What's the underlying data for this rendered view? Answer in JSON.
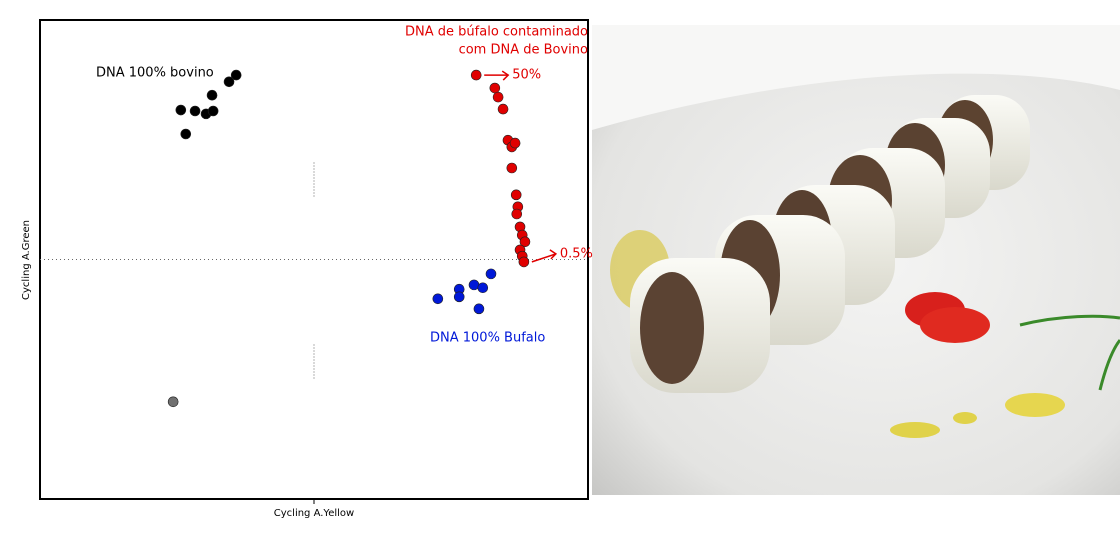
{
  "chart_data": {
    "type": "scatter",
    "x_label": "Cycling A.Yellow",
    "y_label": "Cycling A.Green",
    "xlim": [
      0,
      100
    ],
    "ylim": [
      0,
      100
    ],
    "series": [
      {
        "name": "DNA 100% bovino",
        "color": "#000000",
        "x": [
          35.8,
          34.5,
          31.4,
          25.7,
          28.3,
          30.3,
          31.6,
          26.6
        ],
        "y": [
          88.5,
          87.1,
          84.3,
          81.2,
          81.0,
          80.4,
          81.0,
          76.2
        ]
      },
      {
        "name": [
          "DNA de búfalo contaminado",
          "com DNA de Bovino"
        ],
        "color": "#e00000",
        "x": [
          79.6,
          83.0,
          83.6,
          84.5,
          85.4,
          86.1,
          86.7,
          86.1,
          86.9,
          87.2,
          87.0,
          87.6,
          88.0,
          88.5,
          87.6,
          88.0,
          88.3
        ],
        "y": [
          88.5,
          85.8,
          83.9,
          81.4,
          74.9,
          73.5,
          74.3,
          69.1,
          63.5,
          61.0,
          59.5,
          56.8,
          55.1,
          53.7,
          52.0,
          50.7,
          49.5
        ],
        "annotations": [
          "50%",
          "0.5%"
        ]
      },
      {
        "name": "DNA 100% Bufalo",
        "color": "#0018d8",
        "x": [
          72.6,
          76.5,
          76.5,
          79.2,
          80.8,
          82.3,
          80.1
        ],
        "y": [
          41.8,
          43.8,
          42.2,
          44.7,
          44.1,
          47.0,
          39.7
        ]
      },
      {
        "color": "#707070",
        "x": [
          24.3
        ],
        "y": [
          20.3
        ]
      }
    ]
  }
}
